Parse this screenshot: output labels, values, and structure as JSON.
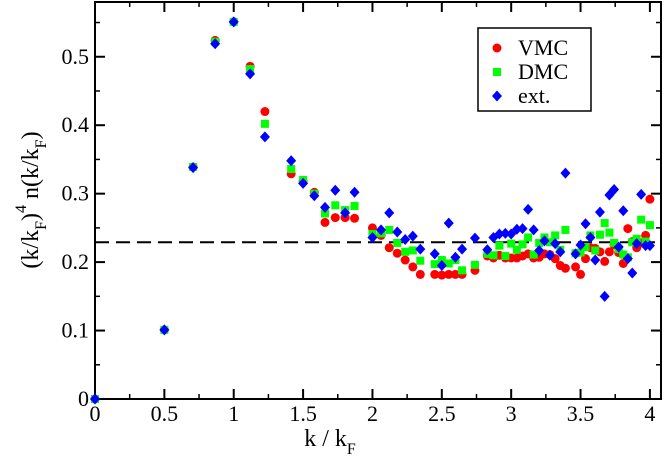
{
  "chart_data": {
    "type": "scatter",
    "title": "",
    "xlabel": {
      "main": "k / k",
      "sub": "F"
    },
    "ylabel": {
      "p1": "(k/k",
      "sub1": "F",
      "p2": ")",
      "sup": "4",
      "p3": " n(k/k",
      "sub2": "F",
      "p4": ")"
    },
    "xlim": [
      0,
      4.08
    ],
    "ylim": [
      0,
      0.58
    ],
    "xticks": [
      0,
      0.5,
      1,
      1.5,
      2,
      2.5,
      3,
      3.5,
      4
    ],
    "xtick_labels": [
      "0",
      "0.5",
      "1",
      "1.5",
      "2",
      "2.5",
      "3",
      "3.5",
      "4"
    ],
    "yticks": [
      0,
      0.1,
      0.2,
      0.3,
      0.4,
      0.5
    ],
    "ytick_labels": [
      "0",
      "0.1",
      "0.2",
      "0.3",
      "0.4",
      "0.5"
    ],
    "reference_line": {
      "y": 0.229,
      "style": "dashed"
    },
    "legend": {
      "placement": "top-right"
    },
    "series": [
      {
        "name": "VMC",
        "marker": "circle",
        "color": "#ff0000",
        "x": [
          0,
          0.5,
          0.707,
          0.866,
          1.0,
          1.118,
          1.225,
          1.414,
          1.5,
          1.581,
          1.658,
          1.732,
          1.803,
          1.871,
          2.0,
          2.062,
          2.121,
          2.179,
          2.236,
          2.291,
          2.345,
          2.449,
          2.5,
          2.55,
          2.598,
          2.646,
          2.739,
          2.828,
          2.872,
          2.915,
          2.958,
          3.0,
          3.041,
          3.082,
          3.122,
          3.162,
          3.202,
          3.24,
          3.279,
          3.317,
          3.354,
          3.391,
          3.464,
          3.5,
          3.536,
          3.571,
          3.606,
          3.64,
          3.674,
          3.708,
          3.742,
          3.775,
          3.808,
          3.841,
          3.873,
          3.905,
          3.937,
          3.969,
          4.0
        ],
        "y": [
          0,
          0.101,
          0.339,
          0.524,
          0.551,
          0.486,
          0.42,
          0.329,
          0.318,
          0.302,
          0.258,
          0.265,
          0.265,
          0.264,
          0.25,
          0.239,
          0.221,
          0.213,
          0.203,
          0.193,
          0.182,
          0.182,
          0.181,
          0.182,
          0.182,
          0.182,
          0.188,
          0.209,
          0.206,
          0.21,
          0.206,
          0.206,
          0.206,
          0.209,
          0.212,
          0.206,
          0.207,
          0.212,
          0.211,
          0.205,
          0.195,
          0.191,
          0.193,
          0.182,
          0.205,
          0.221,
          0.22,
          0.215,
          0.201,
          0.215,
          0.225,
          0.214,
          0.198,
          0.249,
          0.23,
          0.221,
          0.228,
          0.239,
          0.292
        ]
      },
      {
        "name": "DMC",
        "marker": "square",
        "color": "#00ff00",
        "x": [
          0,
          0.5,
          0.707,
          0.866,
          1.0,
          1.118,
          1.225,
          1.414,
          1.5,
          1.581,
          1.658,
          1.732,
          1.803,
          1.871,
          2.0,
          2.062,
          2.121,
          2.179,
          2.236,
          2.291,
          2.345,
          2.449,
          2.5,
          2.55,
          2.598,
          2.646,
          2.739,
          2.828,
          2.872,
          2.915,
          2.958,
          3.0,
          3.041,
          3.082,
          3.122,
          3.162,
          3.202,
          3.24,
          3.279,
          3.317,
          3.354,
          3.391,
          3.464,
          3.5,
          3.536,
          3.571,
          3.606,
          3.64,
          3.674,
          3.708,
          3.742,
          3.775,
          3.808,
          3.841,
          3.873,
          3.905,
          3.937,
          3.969,
          4.0
        ],
        "y": [
          0,
          0.101,
          0.339,
          0.522,
          0.551,
          0.482,
          0.402,
          0.336,
          0.32,
          0.3,
          0.271,
          0.283,
          0.276,
          0.282,
          0.241,
          0.242,
          0.247,
          0.228,
          0.215,
          0.217,
          0.202,
          0.197,
          0.203,
          0.198,
          0.203,
          0.188,
          0.196,
          0.212,
          0.21,
          0.224,
          0.209,
          0.227,
          0.218,
          0.226,
          0.236,
          0.211,
          0.228,
          0.236,
          0.229,
          0.239,
          0.218,
          0.247,
          0.213,
          0.214,
          0.222,
          0.239,
          0.217,
          0.24,
          0.257,
          0.243,
          0.228,
          0.219,
          0.211,
          0.207,
          0.229,
          0.234,
          0.262,
          0.23,
          0.254
        ]
      },
      {
        "name": "ext.",
        "marker": "diamond",
        "color": "#0000ff",
        "x": [
          0,
          0.5,
          0.707,
          0.866,
          1.0,
          1.118,
          1.225,
          1.414,
          1.5,
          1.581,
          1.658,
          1.732,
          1.803,
          1.871,
          2.0,
          2.062,
          2.121,
          2.179,
          2.236,
          2.291,
          2.345,
          2.449,
          2.5,
          2.55,
          2.598,
          2.646,
          2.739,
          2.828,
          2.872,
          2.915,
          2.958,
          3.0,
          3.041,
          3.082,
          3.122,
          3.162,
          3.202,
          3.24,
          3.279,
          3.317,
          3.354,
          3.391,
          3.464,
          3.5,
          3.536,
          3.571,
          3.606,
          3.64,
          3.674,
          3.708,
          3.742,
          3.775,
          3.808,
          3.841,
          3.873,
          3.905,
          3.937,
          3.969,
          4.0
        ],
        "y": [
          0,
          0.101,
          0.338,
          0.519,
          0.551,
          0.475,
          0.383,
          0.348,
          0.315,
          0.297,
          0.28,
          0.305,
          0.272,
          0.302,
          0.236,
          0.247,
          0.272,
          0.244,
          0.233,
          0.238,
          0.219,
          0.212,
          0.195,
          0.257,
          0.207,
          0.219,
          0.235,
          0.218,
          0.236,
          0.241,
          0.242,
          0.241,
          0.248,
          0.249,
          0.277,
          0.247,
          0.217,
          0.231,
          0.21,
          0.227,
          0.215,
          0.33,
          0.212,
          0.225,
          0.256,
          0.236,
          0.203,
          0.273,
          0.15,
          0.298,
          0.306,
          0.222,
          0.275,
          0.205,
          0.184,
          0.227,
          0.299,
          0.224,
          0.224
        ]
      }
    ]
  }
}
